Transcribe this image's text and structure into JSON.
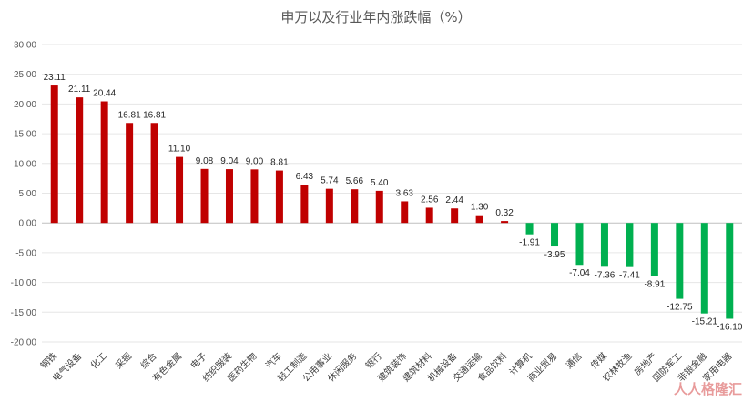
{
  "chart_data": {
    "type": "bar",
    "title": "申万以及行业年内涨跌幅（%）",
    "ylim": [
      -20,
      30
    ],
    "yticks": [
      "30.00",
      "25.00",
      "20.00",
      "15.00",
      "10.00",
      "5.00",
      "0.00",
      "-5.00",
      "-10.00",
      "-15.00",
      "-20.00"
    ],
    "grid": true,
    "legend": "none",
    "colors": {
      "positive": "#c00000",
      "negative": "#00b050"
    },
    "categories": [
      "钢铁",
      "电气设备",
      "化工",
      "采掘",
      "综合",
      "有色金属",
      "电子",
      "纺织服装",
      "医药生物",
      "汽车",
      "轻工制造",
      "公用事业",
      "休闲服务",
      "银行",
      "建筑装饰",
      "建筑材料",
      "机械设备",
      "交通运输",
      "食品饮料",
      "计算机",
      "商业贸易",
      "通信",
      "传媒",
      "农林牧渔",
      "房地产",
      "国防军工",
      "非银金融",
      "家用电器"
    ],
    "values": [
      23.11,
      21.11,
      20.44,
      16.81,
      16.81,
      11.1,
      9.08,
      9.04,
      9.0,
      8.81,
      6.43,
      5.74,
      5.66,
      5.4,
      3.63,
      2.56,
      2.44,
      1.3,
      0.32,
      -1.91,
      -3.95,
      -7.04,
      -7.36,
      -7.41,
      -8.91,
      -12.75,
      -15.21,
      -16.1
    ],
    "data_labels": [
      "23.11",
      "21.11",
      "20.44",
      "16.81",
      "16.81",
      "11.10",
      "9.08",
      "9.04",
      "9.00",
      "8.81",
      "6.43",
      "5.74",
      "5.66",
      "5.40",
      "3.63",
      "2.56",
      "2.44",
      "1.30",
      "0.32",
      "-1.91",
      "-3.95",
      "-7.04",
      "-7.36",
      "-7.41",
      "-8.91",
      "-12.75",
      "-15.21",
      "-16.10"
    ]
  },
  "watermark": "人人格隆汇"
}
